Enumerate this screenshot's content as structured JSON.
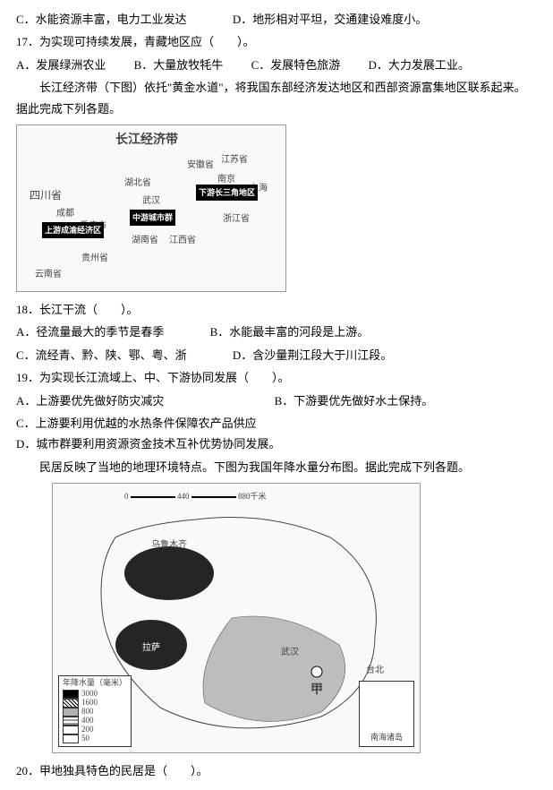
{
  "q16_opts": {
    "c": "C．水能资源丰富，电力工业发达",
    "d": "D．地形相对平坦，交通建设难度小。"
  },
  "q17": {
    "stem": "17．为实现可持续发展，青藏地区应（　　）。",
    "a": "A．发展绿洲农业",
    "b": "B．大量放牧牦牛",
    "c": "C．发展特色旅游",
    "d": "D．大力发展工业。"
  },
  "passage1": "长江经济带（下图）依托\"黄金水道\"，将我国东部经济发达地区和西部资源富集地区联系起来。据此完成下列各题。",
  "map1": {
    "title": "长江经济带",
    "labels": [
      "四川省",
      "成都",
      "重庆市",
      "湖北省",
      "武汉",
      "安徽省",
      "南京",
      "上海",
      "湖南省",
      "江西省",
      "浙江省",
      "云南省",
      "贵州省",
      "江苏省"
    ],
    "tags": [
      "上游成渝经济区",
      "中游城市群",
      "下游长三角地区"
    ]
  },
  "q18": {
    "stem": "18．长江干流（　　）。",
    "a": "A．径流量最大的季节是春季",
    "b": "B．水能最丰富的河段是上游。",
    "c": "C．流经青、黔、陕、鄂、粤、浙",
    "d": "D．含沙量荆江段大于川江段。"
  },
  "q19": {
    "stem": "19．为实现长江流域上、中、下游协同发展（　　）。",
    "a": "A．上游要优先做好防灾减灾",
    "b": "B．下游要优先做好水土保持。",
    "c": "C．上游要利用优越的水热条件保障农产品供应",
    "d": "D．城市群要利用资源资金技术互补优势协同发展。"
  },
  "passage2": "民居反映了当地的地理环境特点。下图为我国年降水量分布图。据此完成下列各题。",
  "map2": {
    "scale_labels": [
      "0",
      "440",
      "880千米"
    ],
    "legend_title": "年降水量（毫米）",
    "legend_items": [
      {
        "label": "3000",
        "fill": "#000000"
      },
      {
        "label": "1600",
        "fill": "repeating-linear-gradient(45deg,#000 0,#000 1px,#fff 1px,#fff 3px)"
      },
      {
        "label": "800",
        "fill": "#b0b0b0"
      },
      {
        "label": "400",
        "fill": "repeating-linear-gradient(0deg,#999 0,#999 2px,#fff 2px,#fff 4px)"
      },
      {
        "label": "200",
        "fill": "#ffffff"
      },
      {
        "label": "50",
        "fill": "#ffffff"
      }
    ],
    "city_labels": [
      "乌鲁木齐",
      "拉萨",
      "武汉",
      "台北"
    ],
    "marker": "甲",
    "inset": "南海诸岛"
  },
  "q20": {
    "stem": "20．甲地独具特色的民居是（　　）。"
  }
}
